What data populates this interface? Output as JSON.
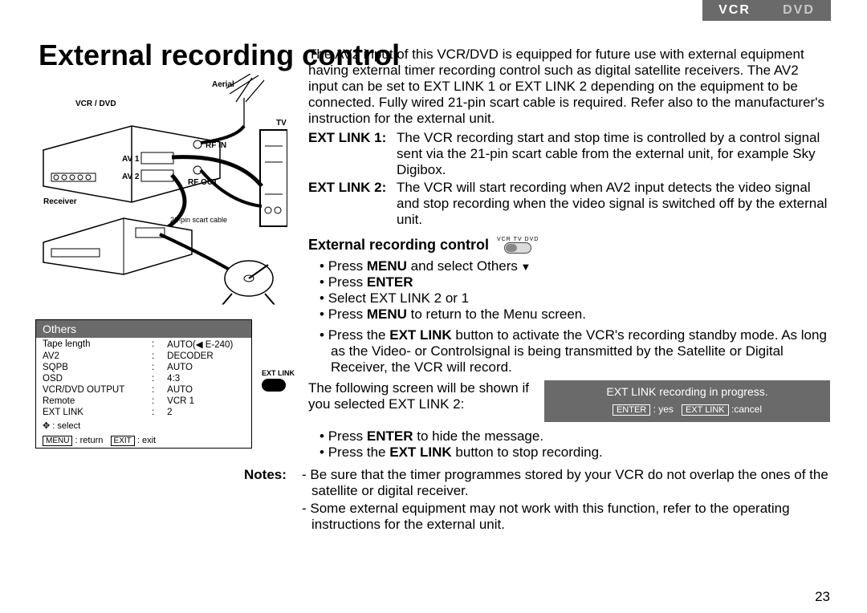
{
  "header": {
    "vcr": "VCR",
    "dvd": "DVD"
  },
  "page_title": "External recording control",
  "page_number": "23",
  "diagram": {
    "labels": {
      "aerial": "Aerial",
      "vcr_dvd": "VCR / DVD",
      "tv": "TV",
      "rf_in": "RF IN",
      "rf_out": "RF OUT",
      "av1": "AV 1",
      "av2": "AV 2",
      "receiver": "Receiver",
      "scart": "21-pin scart cable"
    }
  },
  "others_menu": {
    "title": "Others",
    "rows": [
      {
        "k": "Tape length",
        "v": "AUTO(◀ E-240)"
      },
      {
        "k": "AV2",
        "v": "DECODER"
      },
      {
        "k": "SQPB",
        "v": "AUTO"
      },
      {
        "k": "OSD",
        "v": "4:3"
      },
      {
        "k": "VCR/DVD OUTPUT",
        "v": "AUTO"
      },
      {
        "k": "Remote",
        "v": "VCR 1"
      },
      {
        "k": "EXT LINK",
        "v": "2"
      }
    ],
    "hints": {
      "select_icon": "✥",
      "select_label": ": select",
      "menu_btn": "MENU",
      "menu_label": ": return",
      "exit_btn": "EXIT",
      "exit_label": ": exit"
    }
  },
  "extlink_button_label": "EXT LINK",
  "intro": "The AV2 input of this VCR/DVD is equipped for future use with external equipment having external timer recording control such as digital satellite receivers. The AV2 input can be set to EXT LINK 1 or EXT LINK 2 depending on the equipment to be connected. Fully wired 21-pin scart cable is required. Refer also to the manufacturer's instruction for the external unit.",
  "defs": {
    "ext1_label": "EXT LINK 1:",
    "ext1_text": "The VCR recording start and stop time is controlled by a control signal sent via the 21-pin scart cable from the external unit, for example Sky Digibox.",
    "ext2_label": "EXT LINK 2:",
    "ext2_text": "The VCR will start recording when AV2 input detects the video signal and stop recording when the video signal is switched off by the external unit."
  },
  "subheading": "External recording control",
  "mode_labels": "VCR   TV   DVD",
  "steps1": [
    "Press <b>MENU</b> and select Others",
    "Press <b>ENTER</b>",
    "Select EXT LINK 2 or 1",
    "Press <b>MENU</b> to return to the Menu screen."
  ],
  "steps2": [
    "Press the <b>EXT LINK</b> button to activate the VCR's recording standby mode. As long as the Video- or Controlsignal is being transmitted by the Satellite or Digital Receiver, the VCR will record."
  ],
  "follow_text": "The following screen will be shown if you selected EXT LINK 2:",
  "status_box": {
    "main": "EXT LINK recording in progress.",
    "enter_btn": "ENTER",
    "enter_label": ": yes",
    "extlink_btn": "EXT LINK",
    "extlink_label": ":cancel"
  },
  "steps3": [
    "Press <b>ENTER</b> to hide the message.",
    "Press the <b>EXT LINK</b> button to stop recording."
  ],
  "notes": {
    "label": "Notes:",
    "items": [
      "- Be sure that the timer programmes stored by your VCR do not overlap the ones of the satellite or digital receiver.",
      "- Some external equipment may not work with this function, refer to the operating instructions for the external unit."
    ]
  }
}
